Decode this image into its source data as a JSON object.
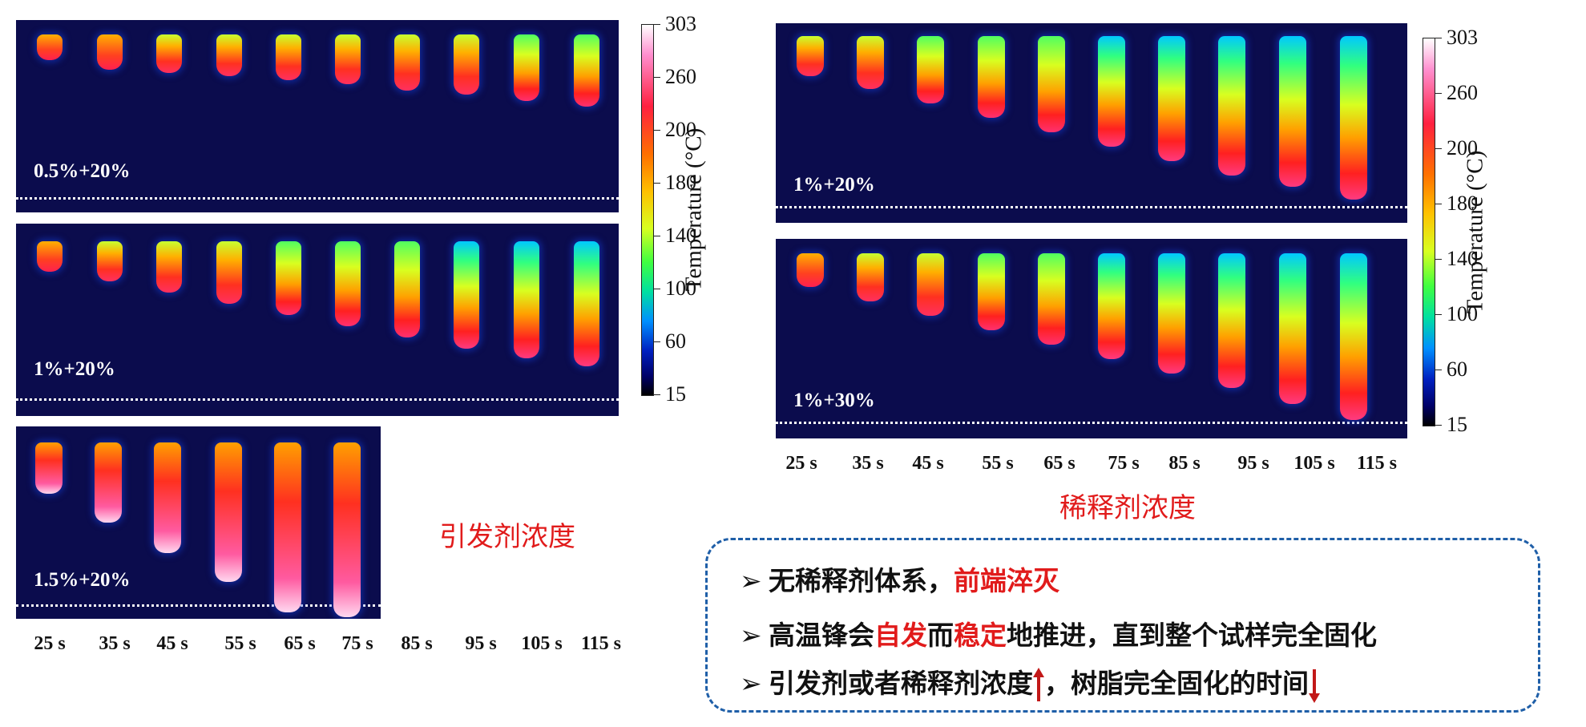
{
  "panels_left": [
    {
      "label": "0.5%+20%"
    },
    {
      "label": "1%+20%"
    },
    {
      "label": "1.5%+20%"
    }
  ],
  "panels_right": [
    {
      "label": "1%+20%"
    },
    {
      "label": "1%+30%"
    }
  ],
  "times": [
    "25 s",
    "35 s",
    "45 s",
    "55 s",
    "65 s",
    "75 s",
    "85 s",
    "95 s",
    "105 s",
    "115 s"
  ],
  "colorbar": {
    "title": "Temperature (°C)",
    "ticks": [
      "303",
      "260",
      "200",
      "180",
      "140",
      "100",
      "60",
      "15"
    ]
  },
  "captions": {
    "initiator": "引发剂浓度",
    "diluent": "稀释剂浓度"
  },
  "summary": {
    "bullet": "➢",
    "l1_a": "无稀释剂体系，",
    "l1_red": "前端淬灭",
    "l2_a": "高温锋会",
    "l2_red1": "自发",
    "l2_b": "而",
    "l2_red2": "稳定",
    "l2_c": "地推进，直到整个试样完全固化",
    "l3_a": "引发剂或者稀释剂浓度",
    "l3_b": "，树脂完全固化的时间"
  },
  "colors": {
    "panel_bg": "#0b0c4d",
    "accent_red": "#e11b1b",
    "border_blue": "#1f5fa8"
  }
}
